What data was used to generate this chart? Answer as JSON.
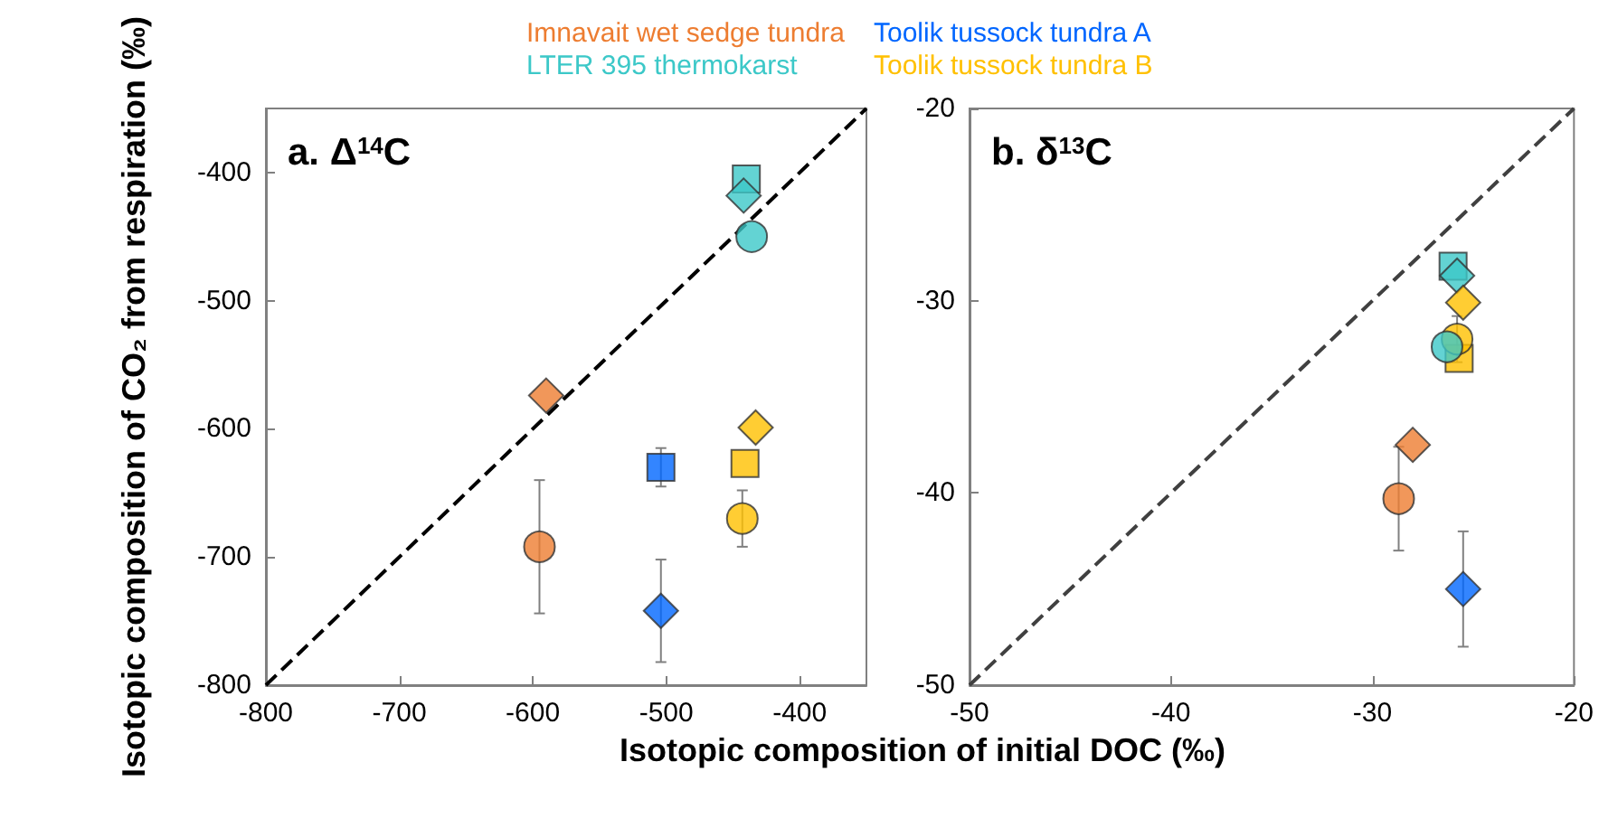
{
  "chart_data": [
    {
      "type": "scatter",
      "title": "a. Δ$^{14}$C",
      "xlabel": "Isotopic composition of initial DOC (‰)",
      "ylabel": "Isotopic composition of CO₂ from respiration (‰)",
      "xlim": [
        -800,
        -350
      ],
      "ylim": [
        -800,
        -350
      ],
      "xticks": [
        -800,
        -700,
        -600,
        -500,
        -400
      ],
      "yticks": [
        -800,
        -700,
        -600,
        -500,
        -400
      ],
      "grid": false,
      "legend": "top",
      "series": [
        {
          "name": "Imnavait wet sedge tundra",
          "color": "#ed7d31",
          "marker": "circle",
          "x": [
            -595
          ],
          "values": [
            -692
          ],
          "errors": [
            52
          ]
        },
        {
          "color": "#ed7d31",
          "marker": "diamond",
          "x": [
            -590
          ],
          "values": [
            -574
          ]
        },
        {
          "name": "Toolik tussock tundra A",
          "color": "#0066ff",
          "marker": "square",
          "x": [
            -504
          ],
          "values": [
            -630
          ],
          "errors": [
            15
          ]
        },
        {
          "color": "#0066ff",
          "marker": "diamond",
          "x": [
            -504
          ],
          "values": [
            -742
          ],
          "errors": [
            40
          ]
        },
        {
          "name": "LTER 395 thermokarst",
          "color": "#3cc8c8",
          "marker": "square",
          "x": [
            -440
          ],
          "values": [
            -405
          ]
        },
        {
          "color": "#3cc8c8",
          "marker": "diamond",
          "x": [
            -442
          ],
          "values": [
            -418
          ]
        },
        {
          "color": "#3cc8c8",
          "marker": "circle",
          "x": [
            -436
          ],
          "values": [
            -450
          ]
        },
        {
          "name": "Toolik tussock tundra B",
          "color": "#ffc000",
          "marker": "circle",
          "x": [
            -443
          ],
          "values": [
            -670
          ],
          "errors": [
            22
          ]
        },
        {
          "color": "#ffc000",
          "marker": "square",
          "x": [
            -441
          ],
          "values": [
            -627
          ]
        },
        {
          "color": "#ffc000",
          "marker": "diamond",
          "x": [
            -433
          ],
          "values": [
            -599
          ]
        },
        {
          "type": "line",
          "color": "#000000",
          "line_style": "dashed",
          "x": [
            -800,
            -350
          ],
          "values": [
            -800,
            -350
          ]
        }
      ]
    },
    {
      "type": "scatter",
      "title": "b. δ$^{13}$C",
      "xlim": [
        -50,
        -20
      ],
      "ylim": [
        -50,
        -20
      ],
      "xticks": [
        -50,
        -40,
        -30,
        -20
      ],
      "yticks": [
        -50,
        -40,
        -30,
        -20
      ],
      "grid": false,
      "series": [
        {
          "type": "line",
          "color": "#404040",
          "line_style": "dashed",
          "x": [
            -50,
            -20
          ],
          "values": [
            -50,
            -20
          ]
        },
        {
          "color": "#ed7d31",
          "marker": "circle",
          "x": [
            -28.7
          ],
          "values": [
            -40.3
          ],
          "errors": [
            2.7
          ]
        },
        {
          "color": "#ed7d31",
          "marker": "diamond",
          "x": [
            -28.0
          ],
          "values": [
            -37.5
          ]
        },
        {
          "color": "#0066ff",
          "marker": "diamond",
          "x": [
            -25.5
          ],
          "values": [
            -45.0
          ],
          "errors": [
            3.0
          ]
        },
        {
          "color": "#3cc8c8",
          "marker": "square",
          "x": [
            -26.0
          ],
          "values": [
            -28.2
          ]
        },
        {
          "color": "#3cc8c8",
          "marker": "diamond",
          "x": [
            -25.8
          ],
          "values": [
            -28.7
          ]
        },
        {
          "color": "#ffc000",
          "marker": "diamond",
          "x": [
            -25.5
          ],
          "values": [
            -30.1
          ]
        },
        {
          "color": "#ffc000",
          "marker": "square",
          "x": [
            -25.7
          ],
          "values": [
            -33.0
          ]
        },
        {
          "color": "#ffc000",
          "marker": "circle",
          "x": [
            -25.8
          ],
          "values": [
            -32.0
          ],
          "errors": [
            1.2
          ]
        },
        {
          "color": "#3cc8c8",
          "marker": "circle",
          "x": [
            -26.3
          ],
          "values": [
            -32.4
          ]
        }
      ]
    }
  ]
}
